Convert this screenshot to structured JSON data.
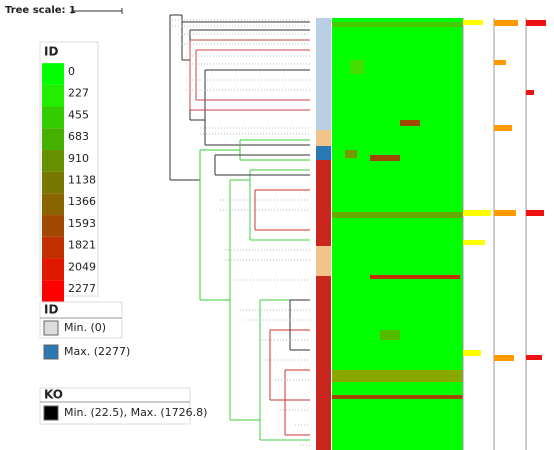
{
  "header": {
    "tree_scale": "Tree scale: 1"
  },
  "legend_gradient": {
    "title": "ID",
    "labels": [
      "0",
      "227",
      "455",
      "683",
      "910",
      "1138",
      "1366",
      "1593",
      "1821",
      "2049",
      "2277"
    ],
    "colors": [
      "#00ff00",
      "#22ee00",
      "#33cc00",
      "#44b000",
      "#669000",
      "#787800",
      "#8a6400",
      "#a04800",
      "#c03000",
      "#e01800",
      "#ff0000"
    ]
  },
  "legend_id": {
    "title": "ID",
    "items": [
      {
        "label": "Min. (0)",
        "color": "#dddddd"
      },
      {
        "label": "Max. (2277)",
        "color": "#2a78b4"
      }
    ]
  },
  "legend_ko": {
    "title": "KO",
    "items": [
      {
        "label": "Min. (22.5), Max. (1726.8)",
        "color": "#000000"
      }
    ]
  }
}
